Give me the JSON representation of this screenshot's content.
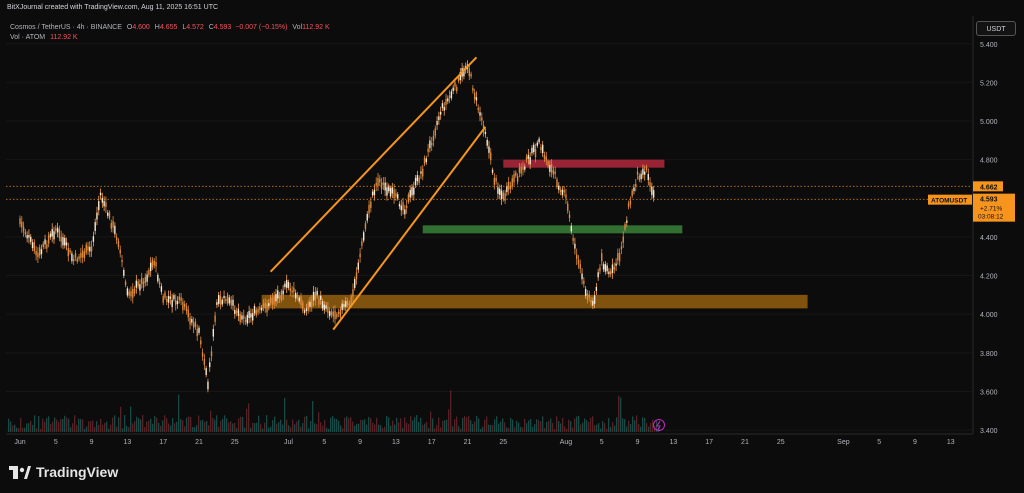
{
  "header": {
    "text": "BitXJournal created with TradingView.com, Aug 11, 2025 16:51 UTC"
  },
  "legend": {
    "symbol": "Cosmos / TetherUS · 4h · BINANCE",
    "ohlc": [
      {
        "k": "O",
        "v": "4.600"
      },
      {
        "k": "H",
        "v": "4.655"
      },
      {
        "k": "L",
        "v": "4.572"
      },
      {
        "k": "C",
        "v": "4.593"
      }
    ],
    "change": "−0.007 (−0.15%)",
    "vol_key": "Vol",
    "vol": "112.92 K",
    "vol_row_label": "Vol · ATOM",
    "vol_row_value": "112.92 K"
  },
  "currency_button": "USDT",
  "watermark": "TradingView",
  "colors": {
    "background": "#0c0c0c",
    "up": "#f7a35c",
    "down": "#e08a3c",
    "channel": "#f7941d",
    "resistance_zone": "#b0283c",
    "support_zone": "#3c8a3c",
    "demand_zone": "#a6690e",
    "price_label": "#f7941d"
  },
  "chart_data": {
    "type": "candlestick",
    "symbol": "ATOMUSDT",
    "timeframe": "4h",
    "y_axis": {
      "ticks": [
        "5.400",
        "5.200",
        "5.000",
        "4.800",
        "4.600",
        "4.400",
        "4.200",
        "4.000",
        "3.800",
        "3.600",
        "3.400"
      ],
      "range": [
        3.39,
        5.43
      ]
    },
    "x_axis": {
      "ticks": [
        "Jun",
        "5",
        "9",
        "13",
        "17",
        "21",
        "25",
        "Jul",
        "5",
        "9",
        "13",
        "17",
        "21",
        "25",
        "Aug",
        "5",
        "9",
        "13",
        "17",
        "21",
        "25",
        "Sep",
        "5",
        "9",
        "13"
      ]
    },
    "price_series": [
      [
        "Jun 1",
        4.48
      ],
      [
        "Jun 3",
        4.3
      ],
      [
        "Jun 5",
        4.44
      ],
      [
        "Jun 7",
        4.28
      ],
      [
        "Jun 9",
        4.34
      ],
      [
        "Jun 10",
        4.62
      ],
      [
        "Jun 12",
        4.38
      ],
      [
        "Jun 13",
        4.1
      ],
      [
        "Jun 15",
        4.18
      ],
      [
        "Jun 16",
        4.28
      ],
      [
        "Jun 17",
        4.08
      ],
      [
        "Jun 19",
        4.06
      ],
      [
        "Jun 21",
        3.9
      ],
      [
        "Jun 22",
        3.65
      ],
      [
        "Jun 23",
        4.05
      ],
      [
        "Jun 24",
        4.08
      ],
      [
        "Jun 26",
        3.98
      ],
      [
        "Jun 28",
        4.02
      ],
      [
        "Jul 1",
        4.15
      ],
      [
        "Jul 3",
        4.02
      ],
      [
        "Jul 4",
        4.1
      ],
      [
        "Jul 6",
        4.0
      ],
      [
        "Jul 8",
        4.06
      ],
      [
        "Jul 10",
        4.55
      ],
      [
        "Jul 11",
        4.7
      ],
      [
        "Jul 13",
        4.6
      ],
      [
        "Jul 14",
        4.55
      ],
      [
        "Jul 16",
        4.75
      ],
      [
        "Jul 18",
        5.05
      ],
      [
        "Jul 20",
        5.2
      ],
      [
        "Jul 21",
        5.3
      ],
      [
        "Jul 22",
        5.1
      ],
      [
        "Jul 23",
        4.95
      ],
      [
        "Jul 24",
        4.7
      ],
      [
        "Jul 25",
        4.6
      ],
      [
        "Jul 27",
        4.75
      ],
      [
        "Jul 29",
        4.88
      ],
      [
        "Aug 1",
        4.6
      ],
      [
        "Aug 2",
        4.35
      ],
      [
        "Aug 3",
        4.15
      ],
      [
        "Aug 4",
        4.05
      ],
      [
        "Aug 5",
        4.28
      ],
      [
        "Aug 6",
        4.2
      ],
      [
        "Aug 7",
        4.3
      ],
      [
        "Aug 8",
        4.55
      ],
      [
        "Aug 9",
        4.72
      ],
      [
        "Aug 10",
        4.75
      ],
      [
        "Aug 11",
        4.593
      ]
    ],
    "channel": {
      "lower": [
        [
          "Jul 6",
          3.92
        ],
        [
          "Jul 23",
          4.97
        ]
      ],
      "upper": [
        [
          "Jun 29",
          4.22
        ],
        [
          "Jul 22",
          5.33
        ]
      ]
    },
    "zones": [
      {
        "name": "resistance",
        "from": [
          "Jul 25",
          4.8
        ],
        "to": [
          "Aug 12",
          4.76
        ]
      },
      {
        "name": "support",
        "from": [
          "Jul 16",
          4.46
        ],
        "to": [
          "Aug 14",
          4.42
        ]
      },
      {
        "name": "demand",
        "from": [
          "Jun 28",
          4.1
        ],
        "to": [
          "Aug 28",
          4.03
        ]
      }
    ],
    "price_lines": [
      {
        "price": "4.662",
        "style": "dotted"
      },
      {
        "price": "4.593",
        "style": "dotted"
      }
    ],
    "last_price": {
      "symbol": "ATOMUSDT",
      "price": "4.593",
      "change": "+2.71%",
      "countdown": "03:08:12"
    },
    "volume_units": "ATOM"
  }
}
